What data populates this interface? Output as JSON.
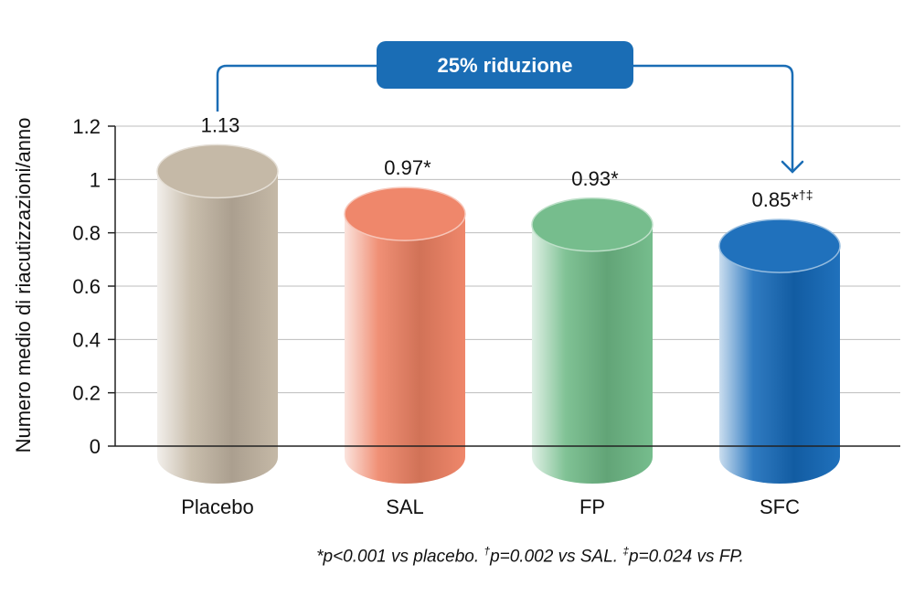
{
  "chart_data": {
    "type": "bar",
    "categories": [
      "Placebo",
      "SAL",
      "FP",
      "SFC"
    ],
    "values": [
      1.13,
      0.97,
      0.93,
      0.85
    ],
    "value_labels": [
      {
        "text": "1.13",
        "sup": ""
      },
      {
        "text": "0.97*",
        "sup": ""
      },
      {
        "text": "0.93*",
        "sup": ""
      },
      {
        "text": "0.85*",
        "sup": "†‡"
      }
    ],
    "ylabel": "Numero medio di riacutizzazioni/anno",
    "ylim": [
      0,
      1.2
    ],
    "yticks": [
      "0",
      "0.2",
      "0.4",
      "0.6",
      "0.8",
      "1",
      "1.2"
    ],
    "grid": true,
    "colors": {
      "Placebo": "#c2b5a2",
      "SAL": "#ee8163",
      "FP": "#6fba87",
      "SFC": "#1469b8"
    },
    "annotation": {
      "text": "25% riduzione",
      "from": "Placebo",
      "to": "SFC",
      "color": "#1a6db5"
    }
  },
  "footnote": {
    "part1": "*p<0.001 vs placebo. ",
    "sup1": "†",
    "part2": "p=0.002 vs SAL. ",
    "sup2": "‡",
    "part3": "p=0.024 vs FP."
  }
}
